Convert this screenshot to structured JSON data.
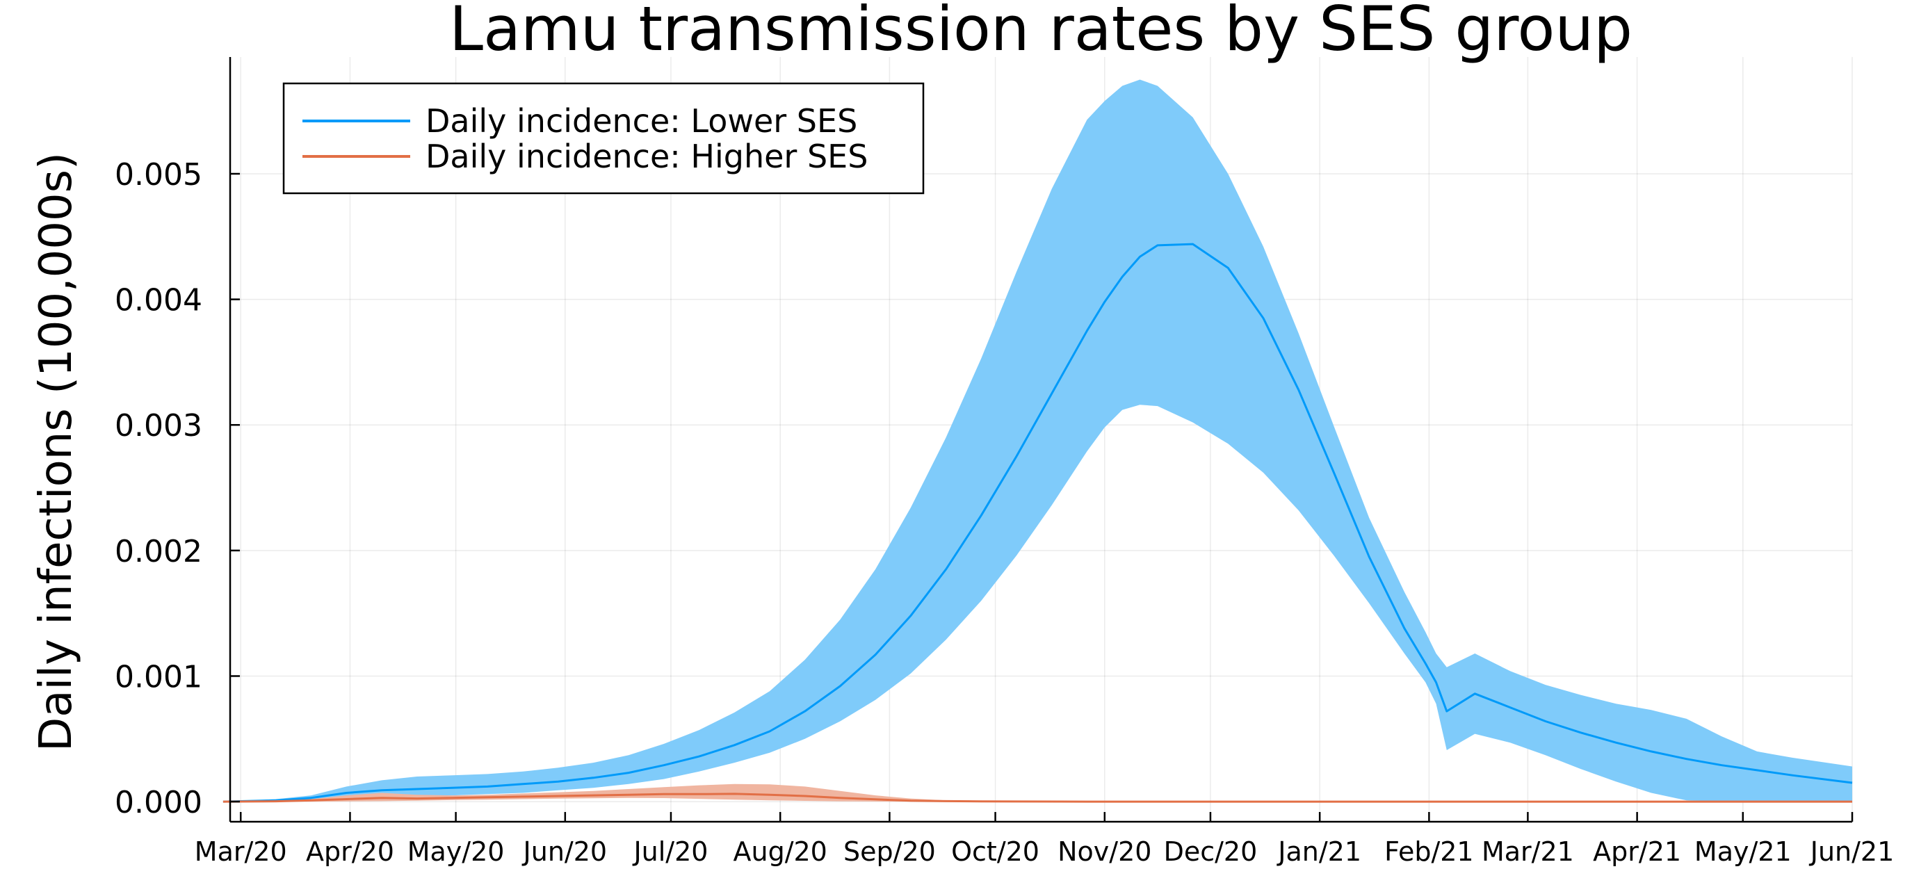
{
  "chart_data": {
    "type": "area",
    "title": "Lamu transmission rates by SES group",
    "xlabel": "",
    "ylabel": "Daily infections (100,000s)",
    "x_unit": "days since start of Mar/20",
    "xlim": [
      -3,
      457
    ],
    "ylim": [
      -0.00016,
      0.00593
    ],
    "x_tick_labels": [
      "Mar/20",
      "Apr/20",
      "May/20",
      "Jun/20",
      "Jul/20",
      "Aug/20",
      "Sep/20",
      "Oct/20",
      "Nov/20",
      "Dec/20",
      "Jan/21",
      "Feb/21",
      "Mar/21",
      "Apr/21",
      "May/21",
      "Jun/21"
    ],
    "x_ticks": [
      0,
      31,
      61,
      92,
      122,
      153,
      184,
      214,
      245,
      275,
      306,
      337,
      365,
      396,
      426,
      457
    ],
    "y_ticks": [
      0,
      0.001,
      0.002,
      0.003,
      0.004,
      0.005
    ],
    "y_tick_labels": [
      "0.000",
      "0.001",
      "0.002",
      "0.003",
      "0.004",
      "0.005"
    ],
    "grid": true,
    "legend_position": "top-left",
    "series": [
      {
        "name": "Daily incidence: Lower SES",
        "color": "#009af9",
        "band_color": "#7fcbfa",
        "x": [
          -5,
          10,
          20,
          30,
          40,
          50,
          60,
          70,
          80,
          90,
          100,
          110,
          120,
          130,
          140,
          150,
          160,
          170,
          180,
          190,
          200,
          210,
          220,
          230,
          240,
          245,
          250,
          255,
          260,
          270,
          280,
          290,
          300,
          310,
          320,
          330,
          336,
          339,
          342,
          350,
          360,
          370,
          380,
          390,
          400,
          410,
          420,
          430,
          440,
          457
        ],
        "mean": [
          0,
          1e-05,
          3e-05,
          7e-05,
          9e-05,
          0.0001,
          0.00011,
          0.00012,
          0.00014,
          0.00016,
          0.00019,
          0.00023,
          0.00029,
          0.00036,
          0.00045,
          0.00056,
          0.00072,
          0.00092,
          0.00117,
          0.00148,
          0.00185,
          0.00228,
          0.00275,
          0.00325,
          0.00375,
          0.00398,
          0.00418,
          0.00434,
          0.00443,
          0.00444,
          0.00425,
          0.00385,
          0.00328,
          0.00262,
          0.00195,
          0.00138,
          0.0011,
          0.00095,
          0.00072,
          0.00086,
          0.00075,
          0.00064,
          0.00055,
          0.00047,
          0.0004,
          0.00034,
          0.00029,
          0.00025,
          0.00021,
          0.00015
        ],
        "upper": [
          0,
          2e-05,
          5e-05,
          0.00012,
          0.00017,
          0.0002,
          0.00021,
          0.00022,
          0.00024,
          0.00027,
          0.00031,
          0.00037,
          0.00046,
          0.00057,
          0.00071,
          0.00088,
          0.00113,
          0.00145,
          0.00185,
          0.00234,
          0.0029,
          0.00353,
          0.00422,
          0.00488,
          0.00543,
          0.00558,
          0.0057,
          0.00575,
          0.0057,
          0.00545,
          0.005,
          0.00442,
          0.00373,
          0.00299,
          0.00226,
          0.00167,
          0.00135,
          0.00118,
          0.00107,
          0.00118,
          0.00104,
          0.00093,
          0.00085,
          0.00078,
          0.00073,
          0.00066,
          0.00052,
          0.0004,
          0.00035,
          0.00028
        ],
        "lower": [
          0,
          0,
          1e-05,
          2e-05,
          3e-05,
          4e-05,
          5e-05,
          6e-05,
          7e-05,
          9e-05,
          0.00011,
          0.00014,
          0.00018,
          0.00024,
          0.00031,
          0.00039,
          0.0005,
          0.00064,
          0.00081,
          0.00102,
          0.00129,
          0.0016,
          0.00196,
          0.00236,
          0.00279,
          0.00298,
          0.00312,
          0.00316,
          0.00315,
          0.00302,
          0.00285,
          0.00262,
          0.00232,
          0.00196,
          0.00158,
          0.00118,
          0.00095,
          0.00078,
          0.00041,
          0.00054,
          0.00047,
          0.00037,
          0.00026,
          0.00016,
          7e-05,
          1e-05,
          0,
          0,
          0,
          0
        ]
      },
      {
        "name": "Daily incidence: Higher SES",
        "color": "#e26f46",
        "band_color": "#f0b5a0",
        "x": [
          -5,
          10,
          20,
          30,
          40,
          50,
          60,
          70,
          80,
          90,
          100,
          110,
          120,
          130,
          140,
          150,
          160,
          170,
          180,
          190,
          200,
          210,
          220,
          240,
          260,
          300,
          340,
          380,
          420,
          457
        ],
        "mean": [
          0,
          3e-06,
          1e-05,
          2e-05,
          3e-05,
          2.5e-05,
          3e-05,
          3.5e-05,
          4e-05,
          4.5e-05,
          5e-05,
          5.5e-05,
          6e-05,
          6e-05,
          6.2e-05,
          5.5e-05,
          4.5e-05,
          3e-05,
          1.8e-05,
          8e-06,
          4e-06,
          2e-06,
          1e-06,
          0,
          0,
          0,
          0,
          0,
          0,
          0
        ],
        "upper": [
          0,
          6e-06,
          2e-05,
          5e-05,
          7e-05,
          5.5e-05,
          5e-05,
          5.5e-05,
          6.5e-05,
          7.5e-05,
          8.5e-05,
          0.0001,
          0.000115,
          0.00013,
          0.00014,
          0.000138,
          0.00012,
          8.5e-05,
          5e-05,
          2.5e-05,
          1e-05,
          4e-06,
          2e-06,
          0,
          0,
          0,
          0,
          0,
          0,
          0
        ],
        "lower": [
          0,
          0,
          0,
          2e-06,
          4e-06,
          8e-06,
          1.2e-05,
          1.6e-05,
          2e-05,
          2.4e-05,
          2.7e-05,
          3e-05,
          2.8e-05,
          2.2e-05,
          1.6e-05,
          1e-05,
          6e-06,
          3e-06,
          1e-06,
          0,
          0,
          0,
          0,
          0,
          0,
          0,
          0,
          0,
          0,
          0
        ]
      }
    ]
  }
}
